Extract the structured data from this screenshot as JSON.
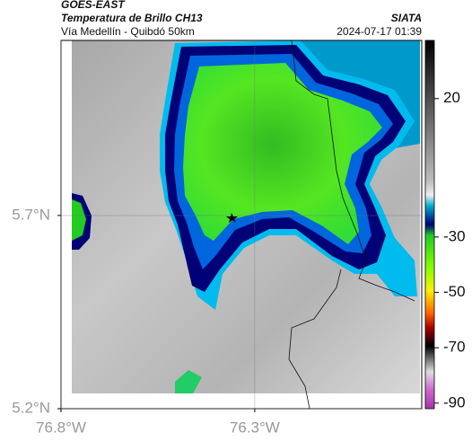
{
  "header": {
    "title": "GOES-EAST",
    "subtitle": "Temperatura de Brillo CH13",
    "route": "Vía Medellín - Quibdó 50km",
    "source": "SIATA",
    "datetime": "2024-07-17 01:39"
  },
  "map": {
    "xlim": [
      -76.8,
      -75.869
    ],
    "ylim": [
      5.2,
      6.153
    ],
    "xticks": [
      {
        "value": -76.8,
        "label": "76.8°W"
      },
      {
        "value": -76.3,
        "label": "76.3°W"
      }
    ],
    "yticks": [
      {
        "value": 5.2,
        "label": "5.2°N"
      },
      {
        "value": 5.7,
        "label": "5.7°N"
      }
    ],
    "grid": true
  },
  "colorbar": {
    "lim": [
      -92,
      41
    ],
    "ticks": [
      20,
      -30,
      -50,
      -70,
      -90
    ]
  }
}
